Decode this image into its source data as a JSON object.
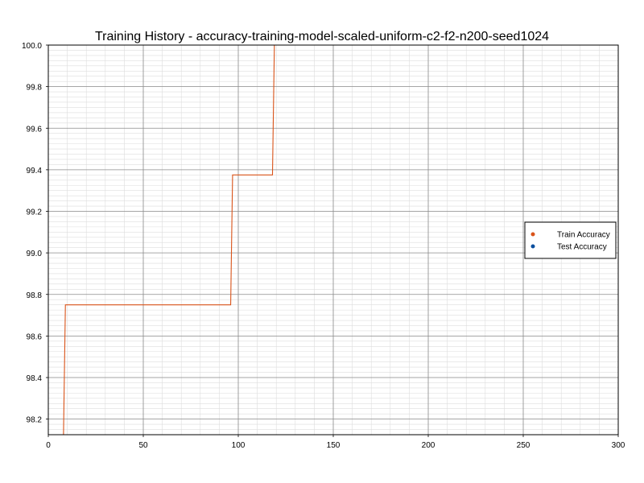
{
  "chart_data": {
    "type": "line",
    "title": "Training History - accuracy-training-model-scaled-uniform-c2-f2-n200-seed1024",
    "xlabel": "",
    "ylabel": "",
    "xlim": [
      0,
      300
    ],
    "ylim": [
      98.125,
      100.0
    ],
    "x_ticks": [
      0,
      50,
      100,
      150,
      200,
      250,
      300
    ],
    "x_tick_labels": [
      "0",
      "50",
      "100",
      "150",
      "200",
      "250",
      "300"
    ],
    "y_ticks": [
      98.2,
      98.4,
      98.6,
      98.8,
      99.0,
      99.2,
      99.4,
      99.6,
      99.8,
      100.0
    ],
    "y_tick_labels": [
      "98.2",
      "98.4",
      "98.6",
      "98.8",
      "99.0",
      "99.2",
      "99.4",
      "99.6",
      "99.8",
      "100.0"
    ],
    "grid": true,
    "minor_grid": true,
    "legend_position": "right",
    "series": [
      {
        "name": "Train Accuracy",
        "color": "#d95319",
        "step": true,
        "points": [
          [
            0,
            98.125
          ],
          [
            8,
            98.125
          ],
          [
            9,
            98.75
          ],
          [
            96,
            98.75
          ],
          [
            97,
            99.375
          ],
          [
            118,
            99.375
          ],
          [
            119,
            100.0
          ],
          [
            120,
            100.0
          ]
        ]
      },
      {
        "name": "Test Accuracy",
        "color": "#0b4f9e",
        "step": false,
        "points": [
          [
            0,
            100.0
          ],
          [
            300,
            100.0
          ]
        ]
      }
    ]
  }
}
